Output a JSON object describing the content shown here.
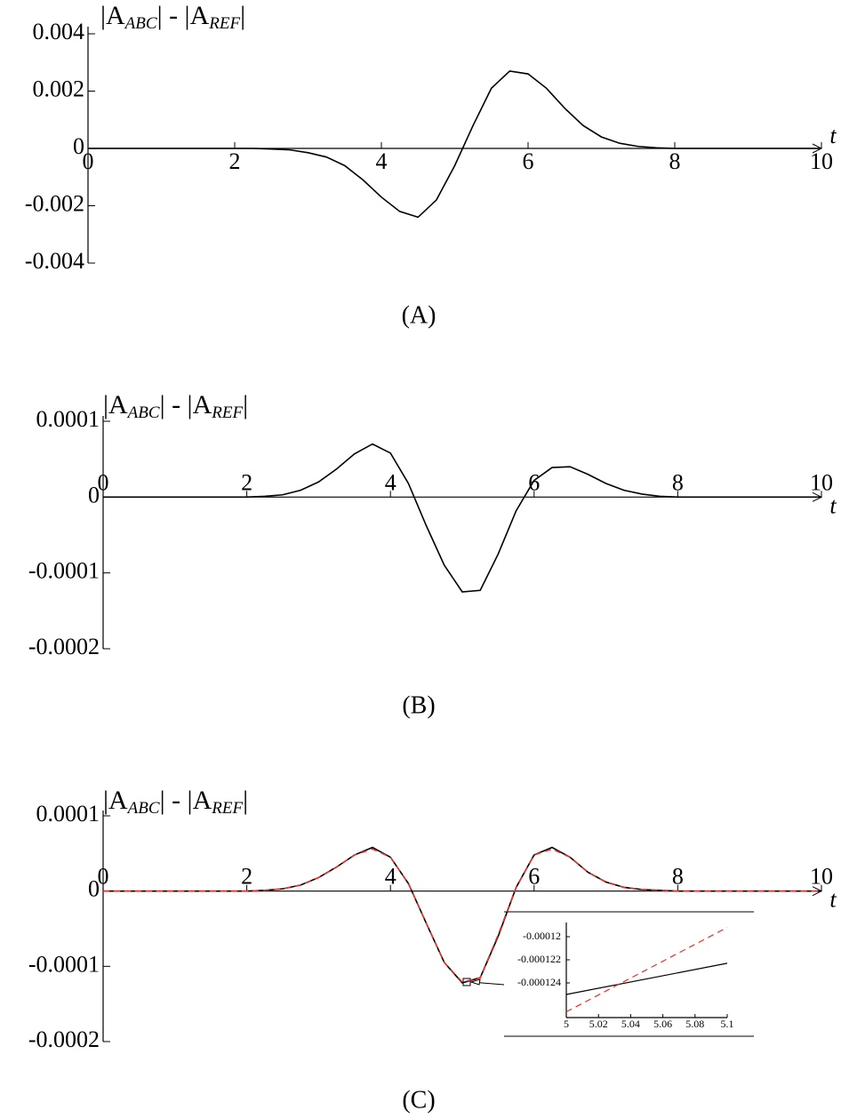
{
  "chart_data": [
    {
      "type": "line",
      "title": [
        "|A",
        "ABC",
        "| - |A",
        "REF",
        "|"
      ],
      "x_label": "t",
      "caption": "(A)",
      "x": [
        0,
        0.25,
        0.5,
        0.75,
        1,
        1.25,
        1.5,
        1.75,
        2,
        2.25,
        2.5,
        2.75,
        3,
        3.25,
        3.5,
        3.75,
        4,
        4.25,
        4.5,
        4.75,
        5,
        5.25,
        5.5,
        5.75,
        6,
        6.25,
        6.5,
        6.75,
        7,
        7.25,
        7.5,
        7.75,
        8,
        8.25,
        8.5,
        8.75,
        9,
        9.25,
        9.5,
        9.75,
        10
      ],
      "series": [
        {
          "color": "#000000",
          "style": "solid",
          "values": [
            0,
            0,
            0,
            0,
            0,
            0,
            0,
            0,
            0,
            0,
            -2e-05,
            -5e-05,
            -0.00015,
            -0.0003,
            -0.0006,
            -0.0011,
            -0.0017,
            -0.0022,
            -0.0024,
            -0.0018,
            -0.0006,
            0.0008,
            0.0021,
            0.0027,
            0.0026,
            0.0021,
            0.0014,
            0.0008,
            0.0004,
            0.00018,
            7e-05,
            2e-05,
            0,
            0,
            0,
            0,
            0,
            0,
            0,
            0,
            0
          ]
        }
      ],
      "xlim": [
        0,
        10
      ],
      "xticks": [
        0,
        2,
        4,
        6,
        8,
        10
      ],
      "ylim": [
        -0.004,
        0.004
      ],
      "yticks": [
        -0.004,
        -0.002,
        0,
        0.002,
        0.004
      ]
    },
    {
      "type": "line",
      "title": [
        "|A",
        "ABC",
        "| - |A",
        "REF",
        "|"
      ],
      "x_label": "t",
      "caption": "(B)",
      "x": [
        0,
        0.25,
        0.5,
        0.75,
        1,
        1.25,
        1.5,
        1.75,
        2,
        2.25,
        2.5,
        2.75,
        3,
        3.25,
        3.5,
        3.75,
        4,
        4.25,
        4.5,
        4.75,
        5,
        5.25,
        5.5,
        5.75,
        6,
        6.25,
        6.5,
        6.75,
        7,
        7.25,
        7.5,
        7.75,
        8,
        8.25,
        8.5,
        8.75,
        9,
        9.25,
        9.5,
        9.75,
        10
      ],
      "series": [
        {
          "color": "#000000",
          "style": "solid",
          "values": [
            0,
            0,
            0,
            0,
            0,
            0,
            0,
            0,
            0,
            1e-06,
            3e-06,
            9e-06,
            2e-05,
            3.7e-05,
            5.7e-05,
            7e-05,
            5.8e-05,
            1.8e-05,
            -3.8e-05,
            -9e-05,
            -0.000125,
            -0.000123,
            -7.5e-05,
            -1.8e-05,
            2.2e-05,
            3.9e-05,
            4e-05,
            3e-05,
            1.8e-05,
            9e-06,
            4e-06,
            1e-06,
            0,
            0,
            0,
            0,
            0,
            0,
            0,
            0,
            0
          ]
        }
      ],
      "xlim": [
        0,
        10
      ],
      "xticks": [
        0,
        2,
        4,
        6,
        8,
        10
      ],
      "ylim": [
        -0.0002,
        0.0001
      ],
      "yticks": [
        -0.0002,
        -0.0001,
        0,
        0.0001
      ]
    },
    {
      "type": "line",
      "title": [
        "|A",
        "ABC",
        "| - |A",
        "REF",
        "|"
      ],
      "x_label": "t",
      "caption": "(C)",
      "x": [
        0,
        0.25,
        0.5,
        0.75,
        1,
        1.25,
        1.5,
        1.75,
        2,
        2.25,
        2.5,
        2.75,
        3,
        3.25,
        3.5,
        3.75,
        4,
        4.25,
        4.5,
        4.75,
        5,
        5.25,
        5.5,
        5.75,
        6,
        6.25,
        6.5,
        6.75,
        7,
        7.25,
        7.5,
        7.75,
        8,
        8.25,
        8.5,
        8.75,
        9,
        9.25,
        9.5,
        9.75,
        10
      ],
      "series": [
        {
          "color": "#000000",
          "style": "solid",
          "values": [
            0,
            0,
            0,
            0,
            0,
            0,
            0,
            0,
            0,
            1e-06,
            3e-06,
            8e-06,
            1.8e-05,
            3.2e-05,
            4.8e-05,
            5.8e-05,
            4.5e-05,
            1e-05,
            -4.3e-05,
            -9.5e-05,
            -0.000122,
            -0.000115,
            -6e-05,
            5e-06,
            4.8e-05,
            5.8e-05,
            4.5e-05,
            2.5e-05,
            1.2e-05,
            5e-06,
            2e-06,
            1e-06,
            0,
            0,
            0,
            0,
            0,
            0,
            0,
            0,
            0
          ]
        },
        {
          "color": "#e8302a",
          "style": "dashed",
          "values": [
            0,
            0,
            0,
            0,
            0,
            0,
            0,
            0,
            0,
            1e-06,
            3e-06,
            8e-06,
            1.8e-05,
            3.2e-05,
            4.8e-05,
            5.6e-05,
            4.5e-05,
            1e-05,
            -4.3e-05,
            -9.5e-05,
            -0.000121,
            -0.000115,
            -5.8e-05,
            5e-06,
            4.8e-05,
            5.6e-05,
            4.5e-05,
            2.5e-05,
            1.2e-05,
            5e-06,
            2e-06,
            1e-06,
            0,
            0,
            0,
            0,
            0,
            0,
            0,
            0,
            0
          ]
        }
      ],
      "xlim": [
        0,
        10
      ],
      "xticks": [
        0,
        2,
        4,
        6,
        8,
        10
      ],
      "ylim": [
        -0.0002,
        0.0001
      ],
      "yticks": [
        -0.0002,
        -0.0001,
        0,
        0.0001
      ],
      "inset": {
        "type": "line",
        "x": [
          5,
          5.1
        ],
        "series": [
          {
            "color": "#000000",
            "style": "solid",
            "values": [
              -0.000125,
              -0.0001223
            ]
          },
          {
            "color": "#e8302a",
            "style": "dashed",
            "values": [
              -0.0001265,
              -0.0001192
            ]
          }
        ],
        "xlim": [
          5,
          5.1
        ],
        "xticks": [
          5,
          5.02,
          5.04,
          5.06,
          5.08,
          5.1
        ],
        "ylim": [
          -0.000127,
          -0.000119
        ],
        "yticks": [
          -0.000124,
          -0.000122,
          -0.00012
        ]
      }
    }
  ]
}
